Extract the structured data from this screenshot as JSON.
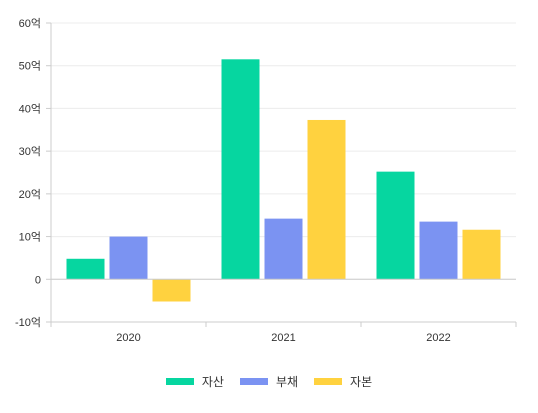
{
  "chart_data": {
    "type": "bar",
    "categories": [
      "2020",
      "2021",
      "2022"
    ],
    "series": [
      {
        "name": "자산",
        "color": "#06d6a0",
        "values": [
          4.8,
          51.5,
          25.2
        ]
      },
      {
        "name": "부채",
        "color": "#7b93f2",
        "values": [
          10.0,
          14.2,
          13.5
        ]
      },
      {
        "name": "자본",
        "color": "#ffd23f",
        "values": [
          -5.2,
          37.3,
          11.6
        ]
      }
    ],
    "y_ticks": [
      60,
      50,
      40,
      30,
      20,
      10,
      0,
      -10
    ],
    "y_tick_labels": [
      "60억",
      "50억",
      "40억",
      "30억",
      "20억",
      "10억",
      "0",
      "-10억"
    ],
    "ylim": [
      -10,
      60
    ],
    "grid": true,
    "legend_position": "bottom-center"
  }
}
